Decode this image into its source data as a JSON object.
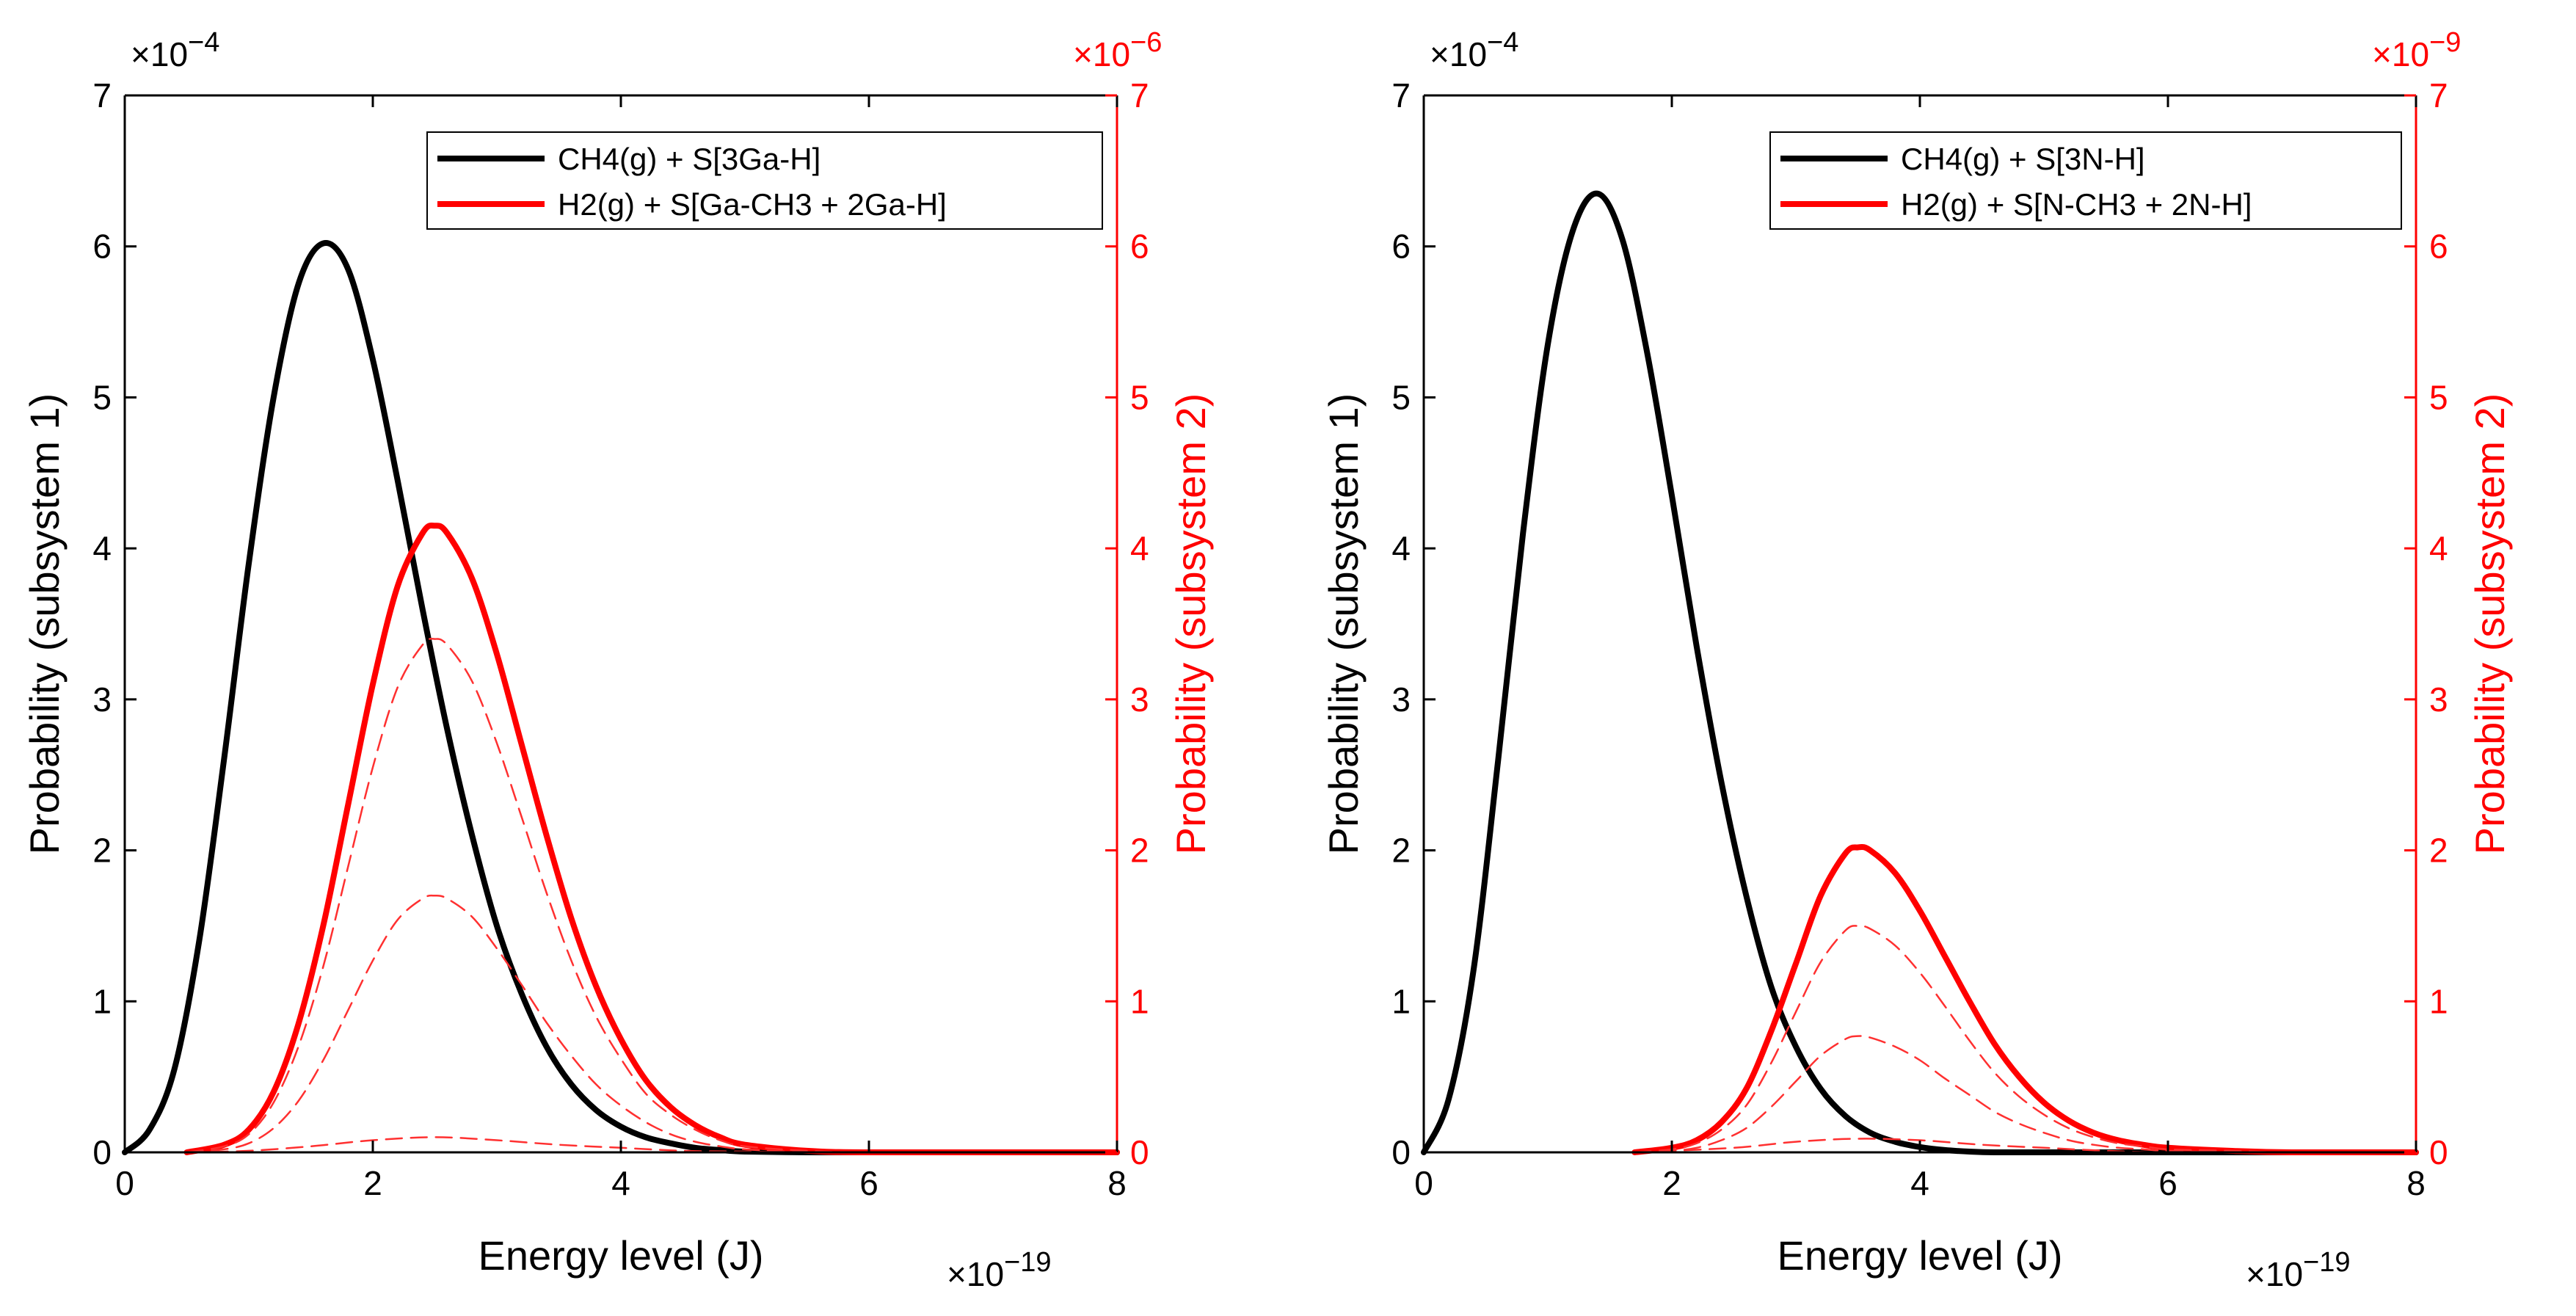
{
  "colors": {
    "left_axis": "#000000",
    "right_axis": "#ff0000",
    "total1": "#000000",
    "total2": "#ff0000",
    "component": "#ff3030"
  },
  "shared": {
    "xlabel": "Energy level (J)",
    "ylabel_left": "Probability (subsystem 1)",
    "ylabel_right": "Probability (subsystem 2)",
    "x_multiplier": "×10",
    "x_exponent": "−19",
    "left_multiplier": "×10",
    "left_exponent": "−4",
    "right_multiplier": "×10"
  },
  "chart_data": [
    {
      "type": "line",
      "right_exponent": "−6",
      "xlim": [
        0,
        8
      ],
      "ylim_left": [
        0,
        7
      ],
      "ylim_right": [
        0,
        7
      ],
      "x_unit_scale": "1e-19",
      "y_left_scale": "1e-4",
      "y_right_scale": "1e-6",
      "xticks": [
        "0",
        "2",
        "4",
        "6",
        "8"
      ],
      "yticks_left": [
        "0",
        "1",
        "2",
        "3",
        "4",
        "5",
        "6",
        "7"
      ],
      "yticks_right": [
        "0",
        "1",
        "2",
        "3",
        "4",
        "5",
        "6",
        "7"
      ],
      "legend": [
        "CH4(g) + S[3Ga-H]",
        "H2(g) + S[Ga-CH3 + 2Ga-H]"
      ],
      "series": [
        {
          "name": "CH4(g) + S[3Ga-H]",
          "axis": "left",
          "style": "solid-thick",
          "x": [
            0,
            0.2,
            0.4,
            0.6,
            0.8,
            1,
            1.2,
            1.4,
            1.6,
            1.8,
            2,
            2.2,
            2.4,
            2.6,
            2.8,
            3,
            3.2,
            3.4,
            3.6,
            3.8,
            4,
            4.2,
            4.4,
            4.6,
            4.8,
            5,
            5.5,
            6,
            7,
            8
          ],
          "y": [
            0,
            0.15,
            0.55,
            1.4,
            2.6,
            3.9,
            5.0,
            5.75,
            6.02,
            5.85,
            5.25,
            4.45,
            3.6,
            2.8,
            2.1,
            1.5,
            1.05,
            0.7,
            0.45,
            0.28,
            0.17,
            0.1,
            0.06,
            0.03,
            0.015,
            0.005,
            0,
            0,
            0,
            0
          ]
        },
        {
          "name": "H2(g) + S[Ga-CH3 + 2Ga-H]",
          "axis": "right",
          "style": "solid-thick",
          "x": [
            0.5,
            0.8,
            1,
            1.2,
            1.4,
            1.6,
            1.8,
            2,
            2.2,
            2.4,
            2.5,
            2.6,
            2.8,
            3,
            3.2,
            3.4,
            3.6,
            3.8,
            4,
            4.2,
            4.4,
            4.6,
            4.8,
            5,
            5.5,
            6,
            7,
            8
          ],
          "y": [
            0,
            0.05,
            0.15,
            0.4,
            0.85,
            1.5,
            2.3,
            3.1,
            3.75,
            4.1,
            4.15,
            4.1,
            3.8,
            3.3,
            2.7,
            2.1,
            1.55,
            1.1,
            0.75,
            0.48,
            0.3,
            0.18,
            0.1,
            0.05,
            0.01,
            0,
            0,
            0
          ]
        },
        {
          "name": "component-a",
          "axis": "right",
          "style": "dashed",
          "x": [
            0.5,
            0.8,
            1,
            1.2,
            1.4,
            1.6,
            1.8,
            2,
            2.2,
            2.4,
            2.5,
            2.6,
            2.8,
            3,
            3.2,
            3.4,
            3.6,
            3.8,
            4,
            4.2,
            4.4,
            4.6,
            4.8,
            5,
            5.5,
            6,
            7,
            8
          ],
          "y": [
            0,
            0.04,
            0.12,
            0.33,
            0.7,
            1.23,
            1.89,
            2.55,
            3.08,
            3.36,
            3.4,
            3.36,
            3.12,
            2.71,
            2.22,
            1.72,
            1.27,
            0.9,
            0.62,
            0.39,
            0.25,
            0.15,
            0.08,
            0.04,
            0.01,
            0,
            0,
            0
          ]
        },
        {
          "name": "component-b",
          "axis": "right",
          "style": "dashed",
          "x": [
            0.5,
            0.8,
            1,
            1.2,
            1.4,
            1.6,
            1.8,
            2,
            2.2,
            2.4,
            2.5,
            2.6,
            2.8,
            3,
            3.2,
            3.4,
            3.6,
            3.8,
            4,
            4.2,
            4.4,
            4.6,
            4.8,
            5,
            5.5,
            6,
            7,
            8
          ],
          "y": [
            0,
            0.02,
            0.06,
            0.16,
            0.34,
            0.61,
            0.94,
            1.27,
            1.54,
            1.68,
            1.7,
            1.68,
            1.56,
            1.35,
            1.11,
            0.86,
            0.64,
            0.45,
            0.31,
            0.2,
            0.12,
            0.07,
            0.04,
            0.02,
            0,
            0,
            0,
            0
          ]
        },
        {
          "name": "component-c",
          "axis": "right",
          "style": "dashed",
          "x": [
            0.5,
            1,
            1.5,
            2,
            2.5,
            3,
            3.5,
            4,
            4.5,
            5,
            5.5,
            6,
            7,
            8
          ],
          "y": [
            0,
            0.01,
            0.04,
            0.08,
            0.1,
            0.08,
            0.05,
            0.03,
            0.01,
            0.005,
            0,
            0,
            0,
            0
          ]
        }
      ]
    },
    {
      "type": "line",
      "right_exponent": "−9",
      "xlim": [
        0,
        8
      ],
      "ylim_left": [
        0,
        7
      ],
      "ylim_right": [
        0,
        7
      ],
      "x_unit_scale": "1e-19",
      "y_left_scale": "1e-4",
      "y_right_scale": "1e-9",
      "xticks": [
        "0",
        "2",
        "4",
        "6",
        "8"
      ],
      "yticks_left": [
        "0",
        "1",
        "2",
        "3",
        "4",
        "5",
        "6",
        "7"
      ],
      "yticks_right": [
        "0",
        "1",
        "2",
        "3",
        "4",
        "5",
        "6",
        "7"
      ],
      "legend": [
        "CH4(g) + S[3N-H]",
        "H2(g) + S[N-CH3 + 2N-H]"
      ],
      "series": [
        {
          "name": "CH4(g) + S[3N-H]",
          "axis": "left",
          "style": "solid-thick",
          "x": [
            0,
            0.2,
            0.4,
            0.6,
            0.8,
            1,
            1.2,
            1.4,
            1.6,
            1.8,
            2,
            2.2,
            2.4,
            2.6,
            2.8,
            3,
            3.2,
            3.4,
            3.6,
            3.8,
            4,
            4.2,
            4.4,
            4.6,
            5,
            5.5,
            6,
            7,
            8
          ],
          "y": [
            0,
            0.35,
            1.2,
            2.6,
            4.1,
            5.35,
            6.1,
            6.35,
            6.05,
            5.3,
            4.35,
            3.35,
            2.45,
            1.7,
            1.1,
            0.7,
            0.42,
            0.24,
            0.13,
            0.07,
            0.035,
            0.015,
            0.005,
            0,
            0,
            0,
            0,
            0,
            0
          ]
        },
        {
          "name": "H2(g) + S[N-CH3 + 2N-H]",
          "axis": "right",
          "style": "solid-thick",
          "x": [
            1.7,
            2,
            2.2,
            2.4,
            2.6,
            2.8,
            3,
            3.2,
            3.4,
            3.5,
            3.6,
            3.8,
            4,
            4.2,
            4.4,
            4.6,
            4.8,
            5,
            5.2,
            5.4,
            5.6,
            5.8,
            6,
            6.5,
            7,
            8
          ],
          "y": [
            0,
            0.03,
            0.08,
            0.2,
            0.42,
            0.8,
            1.25,
            1.7,
            1.98,
            2.02,
            2.0,
            1.85,
            1.6,
            1.3,
            1.0,
            0.72,
            0.5,
            0.33,
            0.21,
            0.13,
            0.08,
            0.05,
            0.03,
            0.01,
            0,
            0
          ]
        },
        {
          "name": "component-a",
          "axis": "right",
          "style": "dashed",
          "x": [
            1.7,
            2,
            2.2,
            2.4,
            2.6,
            2.8,
            3,
            3.2,
            3.4,
            3.5,
            3.6,
            3.8,
            4,
            4.2,
            4.4,
            4.6,
            4.8,
            5,
            5.2,
            5.4,
            5.6,
            5.8,
            6,
            6.5,
            7,
            8
          ],
          "y": [
            0,
            0.02,
            0.06,
            0.15,
            0.31,
            0.59,
            0.93,
            1.26,
            1.47,
            1.5,
            1.48,
            1.37,
            1.19,
            0.97,
            0.74,
            0.53,
            0.37,
            0.25,
            0.16,
            0.1,
            0.06,
            0.04,
            0.02,
            0.01,
            0,
            0
          ]
        },
        {
          "name": "component-b",
          "axis": "right",
          "style": "dashed",
          "x": [
            1.7,
            2,
            2.2,
            2.4,
            2.6,
            2.8,
            3,
            3.2,
            3.4,
            3.5,
            3.6,
            3.8,
            4,
            4.2,
            4.4,
            4.6,
            4.8,
            5,
            5.2,
            5.4,
            5.6,
            5.8,
            6,
            6.5,
            7,
            8
          ],
          "y": [
            0,
            0.01,
            0.03,
            0.08,
            0.16,
            0.3,
            0.47,
            0.64,
            0.75,
            0.77,
            0.76,
            0.7,
            0.61,
            0.49,
            0.38,
            0.27,
            0.19,
            0.13,
            0.08,
            0.05,
            0.03,
            0.02,
            0.01,
            0,
            0,
            0
          ]
        },
        {
          "name": "component-c",
          "axis": "right",
          "style": "dashed",
          "x": [
            1.7,
            2.5,
            3,
            3.5,
            4,
            4.5,
            5,
            5.5,
            6,
            7,
            8
          ],
          "y": [
            0,
            0.03,
            0.07,
            0.09,
            0.08,
            0.05,
            0.03,
            0.01,
            0,
            0,
            0
          ]
        }
      ]
    }
  ]
}
